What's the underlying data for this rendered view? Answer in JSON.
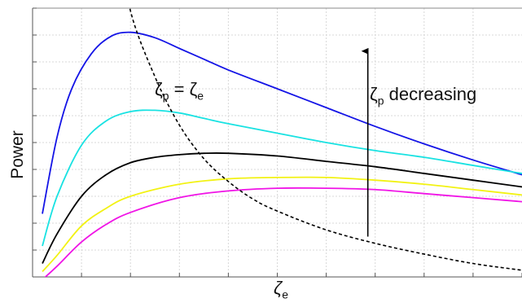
{
  "chart_data": {
    "type": "line",
    "title": "",
    "xlabel_main": "ζ",
    "xlabel_sub": "e",
    "ylabel": "Power",
    "xlim": [
      0,
      10
    ],
    "ylim": [
      0,
      10
    ],
    "grid": true,
    "annotations": {
      "equal": {
        "base1": "ζ",
        "sub1": "p",
        "eq": " = ",
        "base2": "ζ",
        "sub2": "e"
      },
      "decreasing": {
        "base": "ζ",
        "sub": "p",
        "text": " decreasing"
      }
    },
    "colors": {
      "blue": "#1414e6",
      "cyan": "#19e2e2",
      "black": "#000000",
      "yellow": "#f2f214",
      "magenta": "#f014e6",
      "dashed": "#000000",
      "grid": "#d8d8d8"
    },
    "series": [
      {
        "color_key": "blue",
        "x": [
          0.2,
          0.5,
          0.8,
          1.2,
          1.6,
          2.0,
          2.5,
          3.0,
          3.5,
          4.0,
          5.0,
          6.0,
          7.0,
          8.0,
          9.0,
          10.0
        ],
        "y": [
          2.35,
          5.2,
          7.0,
          8.3,
          8.95,
          9.1,
          8.9,
          8.5,
          8.1,
          7.7,
          7.0,
          6.3,
          5.6,
          4.95,
          4.35,
          3.8
        ]
      },
      {
        "color_key": "cyan",
        "x": [
          0.2,
          0.5,
          1.0,
          1.5,
          2.0,
          2.5,
          3.0,
          3.5,
          4.0,
          5.0,
          6.0,
          7.0,
          8.0,
          9.0,
          10.0
        ],
        "y": [
          1.15,
          3.0,
          4.9,
          5.8,
          6.15,
          6.2,
          6.1,
          5.9,
          5.7,
          5.35,
          5.0,
          4.7,
          4.45,
          4.15,
          3.85
        ]
      },
      {
        "color_key": "black",
        "x": [
          0.2,
          0.5,
          1.0,
          1.5,
          2.0,
          2.5,
          3.0,
          3.5,
          4.0,
          5.0,
          6.0,
          7.0,
          8.0,
          9.0,
          10.0
        ],
        "y": [
          0.5,
          1.6,
          3.0,
          3.8,
          4.25,
          4.45,
          4.55,
          4.6,
          4.6,
          4.5,
          4.3,
          4.1,
          3.85,
          3.6,
          3.35
        ]
      },
      {
        "color_key": "yellow",
        "x": [
          0.2,
          0.5,
          1.0,
          1.5,
          2.0,
          3.0,
          4.0,
          5.0,
          6.0,
          7.0,
          8.0,
          9.0,
          10.0
        ],
        "y": [
          0.2,
          0.8,
          1.9,
          2.55,
          3.0,
          3.45,
          3.65,
          3.7,
          3.7,
          3.6,
          3.45,
          3.25,
          3.05
        ]
      },
      {
        "color_key": "magenta",
        "x": [
          0.2,
          0.5,
          1.0,
          1.5,
          2.0,
          3.0,
          4.0,
          5.0,
          6.0,
          7.0,
          8.0,
          9.0,
          10.0
        ],
        "y": [
          -0.1,
          0.4,
          1.3,
          1.95,
          2.4,
          2.95,
          3.2,
          3.3,
          3.3,
          3.25,
          3.1,
          2.95,
          2.8
        ]
      },
      {
        "color_key": "dashed",
        "dashed": true,
        "x": [
          1.8,
          2.0,
          2.5,
          3.0,
          3.5,
          4.0,
          4.5,
          5.0,
          6.0,
          7.0,
          8.0,
          9.0,
          10.0
        ],
        "y": [
          12.5,
          9.9,
          7.45,
          5.65,
          4.4,
          3.55,
          2.9,
          2.45,
          1.75,
          1.25,
          0.85,
          0.5,
          0.25
        ]
      }
    ],
    "arrow": {
      "x": 6.85,
      "y_from": 1.5,
      "y_to": 8.4
    }
  }
}
